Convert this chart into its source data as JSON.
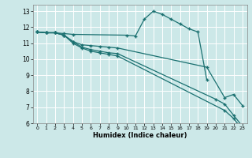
{
  "xlabel": "Humidex (Indice chaleur)",
  "bg_color": "#cce8e8",
  "grid_color": "#ffffff",
  "line_color": "#1a7070",
  "xlim": [
    -0.5,
    23.5
  ],
  "ylim": [
    6,
    13.4
  ],
  "xtick_labels": [
    "0",
    "1",
    "2",
    "3",
    "4",
    "5",
    "6",
    "7",
    "8",
    "9",
    "10",
    "11",
    "12",
    "13",
    "14",
    "15",
    "16",
    "17",
    "18",
    "19",
    "20",
    "21",
    "22",
    "23"
  ],
  "xticks": [
    0,
    1,
    2,
    3,
    4,
    5,
    6,
    7,
    8,
    9,
    10,
    11,
    12,
    13,
    14,
    15,
    16,
    17,
    18,
    19,
    20,
    21,
    22,
    23
  ],
  "yticks": [
    6,
    7,
    8,
    9,
    10,
    11,
    12,
    13
  ],
  "series": [
    {
      "x": [
        0,
        1,
        2,
        3,
        4,
        10,
        11,
        12,
        13,
        14,
        15,
        16,
        17,
        18,
        19
      ],
      "y": [
        11.7,
        11.65,
        11.65,
        11.6,
        11.55,
        11.5,
        11.45,
        12.5,
        13.0,
        12.8,
        12.5,
        12.2,
        11.9,
        11.7,
        8.7
      ]
    },
    {
      "x": [
        0,
        1,
        2,
        3,
        4,
        5,
        6,
        7,
        8,
        9,
        19,
        21,
        22,
        23
      ],
      "y": [
        11.7,
        11.65,
        11.65,
        11.5,
        11.1,
        10.9,
        10.85,
        10.8,
        10.75,
        10.7,
        9.5,
        7.6,
        7.8,
        7.1
      ]
    },
    {
      "x": [
        0,
        1,
        2,
        3,
        4,
        5,
        6,
        7,
        8,
        9,
        20,
        21,
        22,
        23
      ],
      "y": [
        11.7,
        11.65,
        11.65,
        11.5,
        11.1,
        10.75,
        10.6,
        10.5,
        10.4,
        10.35,
        7.5,
        7.2,
        6.5,
        5.8
      ]
    },
    {
      "x": [
        0,
        1,
        2,
        3,
        4,
        5,
        6,
        7,
        8,
        9,
        21,
        22,
        23
      ],
      "y": [
        11.7,
        11.65,
        11.65,
        11.5,
        11.0,
        10.7,
        10.5,
        10.4,
        10.3,
        10.2,
        6.8,
        6.3,
        5.6
      ]
    }
  ]
}
